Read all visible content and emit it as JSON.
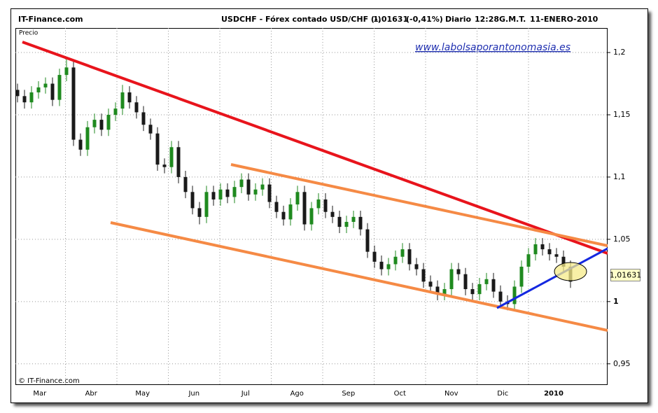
{
  "header": {
    "site": "IT-Finance.com",
    "instrument": "USDCHF - Fórex contado USD/CHF (-)",
    "price": "1,01631",
    "change": "(-0,41%)",
    "period": "Diario",
    "time": "12:28",
    "timezone": "G.M.T.",
    "date": "11-ENERO-2010"
  },
  "chart_data": {
    "type": "candlestick",
    "y_label": "Precio",
    "watermark": "www.labolsaporantonomasia.es",
    "copyright": "© IT-Finance.com",
    "x_labels": [
      "Mar",
      "Abr",
      "May",
      "Jun",
      "Jul",
      "Ago",
      "Sep",
      "Oct",
      "Nov",
      "Dic",
      "2010"
    ],
    "ylim": [
      0.933,
      1.2197
    ],
    "yticks": [
      {
        "value": 1.2,
        "label": "1,2"
      },
      {
        "value": 1.15,
        "label": "1,15"
      },
      {
        "value": 1.1,
        "label": "1,1"
      },
      {
        "value": 1.05,
        "label": "1,05"
      },
      1,
      {
        "value": 0.95,
        "label": "0,95"
      }
    ],
    "grid": true,
    "up_color": "#1f8a1f",
    "down_color": "#1a1a1a",
    "open": [
      1.17,
      1.165,
      1.16,
      1.168,
      1.172,
      1.175,
      1.162,
      1.182,
      1.188,
      1.13,
      1.122,
      1.14,
      1.146,
      1.138,
      1.15,
      1.155,
      1.168,
      1.16,
      1.152,
      1.142,
      1.135,
      1.11,
      1.108,
      1.124,
      1.1,
      1.088,
      1.075,
      1.068,
      1.088,
      1.082,
      1.09,
      1.084,
      1.092,
      1.098,
      1.086,
      1.09,
      1.094,
      1.08,
      1.072,
      1.066,
      1.078,
      1.088,
      1.062,
      1.075,
      1.082,
      1.072,
      1.068,
      1.06,
      1.064,
      1.068,
      1.058,
      1.04,
      1.032,
      1.026,
      1.03,
      1.036,
      1.042,
      1.03,
      1.026,
      1.016,
      1.012,
      1.006,
      1.01,
      1.026,
      1.022,
      1.01,
      1.006,
      1.014,
      1.018,
      1.008,
      1.0,
      0.998,
      1.012,
      1.028,
      1.038,
      1.046,
      1.042,
      1.038,
      1.036,
      1.028
    ],
    "high": [
      1.175,
      1.17,
      1.173,
      1.177,
      1.18,
      1.18,
      1.187,
      1.195,
      1.193,
      1.135,
      1.145,
      1.151,
      1.151,
      1.155,
      1.16,
      1.174,
      1.173,
      1.165,
      1.157,
      1.147,
      1.14,
      1.115,
      1.129,
      1.129,
      1.105,
      1.093,
      1.08,
      1.093,
      1.093,
      1.095,
      1.095,
      1.097,
      1.103,
      1.103,
      1.095,
      1.099,
      1.099,
      1.085,
      1.077,
      1.083,
      1.093,
      1.093,
      1.08,
      1.087,
      1.087,
      1.077,
      1.073,
      1.069,
      1.073,
      1.073,
      1.063,
      1.045,
      1.037,
      1.035,
      1.041,
      1.047,
      1.047,
      1.035,
      1.031,
      1.021,
      1.017,
      1.015,
      1.031,
      1.031,
      1.027,
      1.015,
      1.019,
      1.023,
      1.023,
      1.013,
      1.005,
      1.017,
      1.033,
      1.043,
      1.051,
      1.051,
      1.047,
      1.043,
      1.041,
      1.033
    ],
    "low": [
      1.16,
      1.155,
      1.155,
      1.163,
      1.167,
      1.157,
      1.157,
      1.177,
      1.125,
      1.117,
      1.117,
      1.135,
      1.133,
      1.133,
      1.145,
      1.15,
      1.155,
      1.147,
      1.137,
      1.13,
      1.105,
      1.103,
      1.103,
      1.095,
      1.083,
      1.07,
      1.062,
      1.063,
      1.077,
      1.077,
      1.079,
      1.079,
      1.087,
      1.081,
      1.081,
      1.085,
      1.075,
      1.067,
      1.061,
      1.061,
      1.073,
      1.057,
      1.057,
      1.07,
      1.067,
      1.063,
      1.055,
      1.055,
      1.059,
      1.053,
      1.035,
      1.027,
      1.021,
      1.021,
      1.025,
      1.031,
      1.025,
      1.021,
      1.011,
      1.007,
      1.001,
      1.001,
      1.005,
      1.017,
      1.005,
      1.001,
      1.001,
      1.009,
      1.003,
      0.995,
      0.993,
      0.993,
      1.007,
      1.023,
      1.033,
      1.037,
      1.033,
      1.031,
      1.023,
      1.011
    ],
    "close": [
      1.165,
      1.16,
      1.168,
      1.172,
      1.175,
      1.162,
      1.182,
      1.188,
      1.13,
      1.122,
      1.14,
      1.146,
      1.138,
      1.15,
      1.155,
      1.168,
      1.16,
      1.152,
      1.142,
      1.135,
      1.11,
      1.108,
      1.124,
      1.1,
      1.088,
      1.075,
      1.068,
      1.088,
      1.082,
      1.09,
      1.084,
      1.092,
      1.098,
      1.086,
      1.09,
      1.094,
      1.08,
      1.072,
      1.066,
      1.078,
      1.088,
      1.062,
      1.075,
      1.082,
      1.072,
      1.068,
      1.06,
      1.064,
      1.068,
      1.058,
      1.04,
      1.032,
      1.026,
      1.03,
      1.036,
      1.042,
      1.03,
      1.026,
      1.016,
      1.012,
      1.006,
      1.01,
      1.026,
      1.022,
      1.01,
      1.006,
      1.014,
      1.018,
      1.008,
      1.0,
      0.998,
      1.012,
      1.028,
      1.038,
      1.046,
      1.042,
      1.038,
      1.036,
      1.028,
      1.016
    ]
  }
}
